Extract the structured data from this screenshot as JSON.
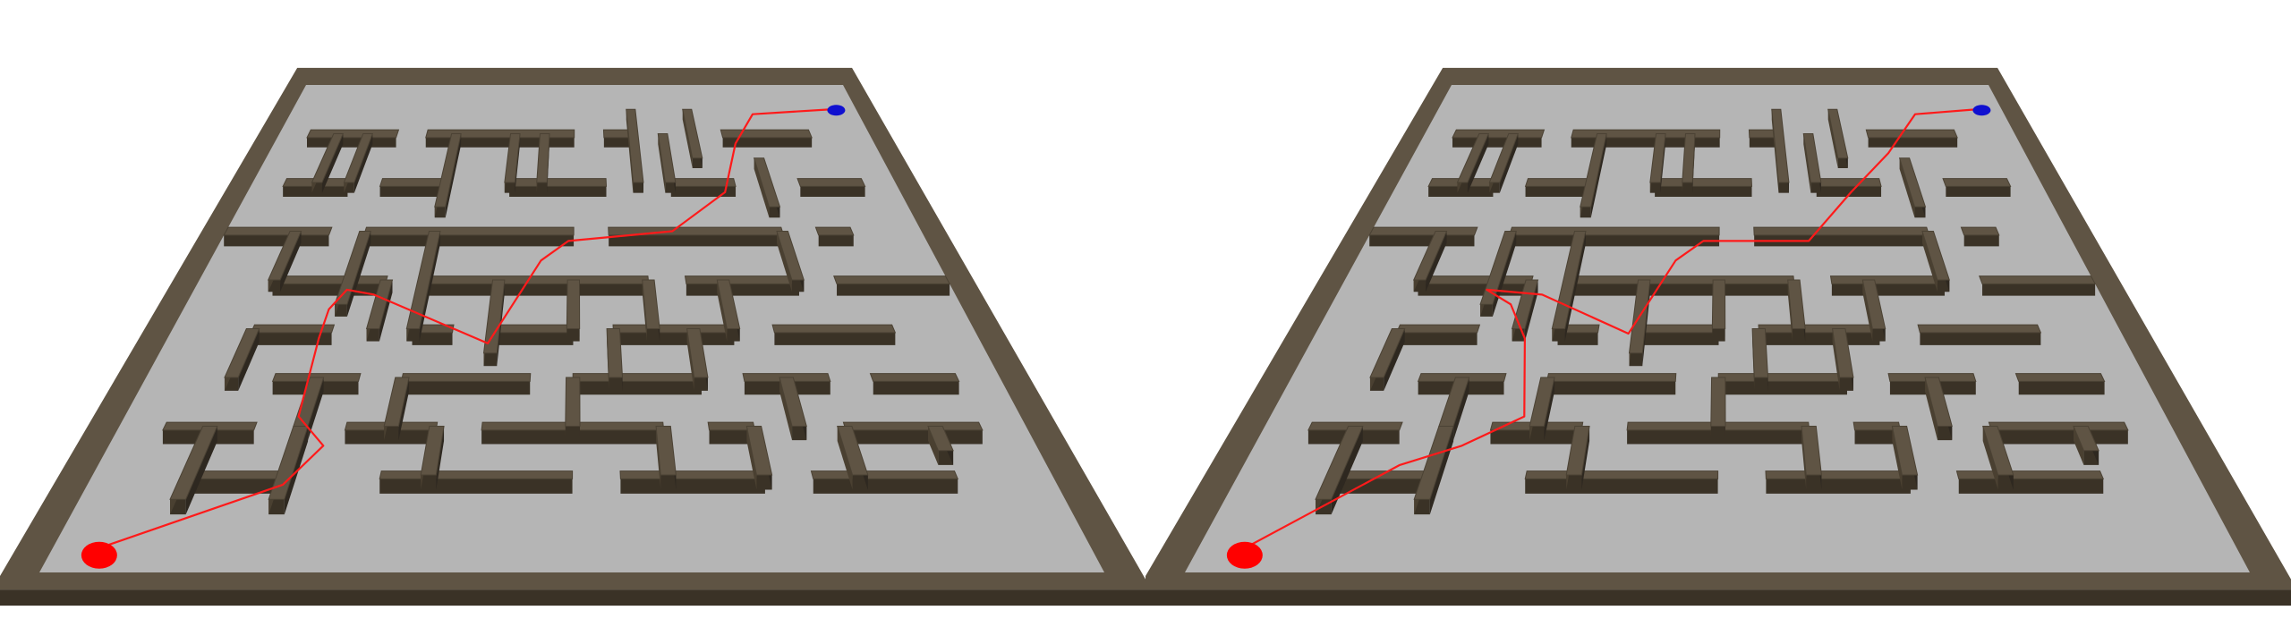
{
  "scene": {
    "type": "side-by-side maze path comparison",
    "panel_count": 2
  },
  "colors": {
    "background": "#ffffff",
    "floor": "#b5b5b5",
    "wall_top": "#5f5444",
    "wall_side": "#3a3226",
    "path": "#ff1a1a",
    "start_marker": "#ff0000",
    "goal_marker": "#1010d0"
  },
  "maze": {
    "grid_cols": 10,
    "grid_rows": 10,
    "walls": [
      [
        0.5,
        1,
        2,
        1
      ],
      [
        2.5,
        1,
        5,
        1
      ],
      [
        5.5,
        1,
        6,
        1
      ],
      [
        7.5,
        1,
        9,
        1
      ],
      [
        0.5,
        2,
        1.5,
        2
      ],
      [
        2,
        2,
        3,
        2
      ],
      [
        4,
        2,
        5.5,
        2
      ],
      [
        6.5,
        2,
        7.5,
        2
      ],
      [
        8.5,
        2,
        9.5,
        2
      ],
      [
        0,
        3,
        1.5,
        3
      ],
      [
        2,
        3,
        5,
        3
      ],
      [
        5.5,
        3,
        8,
        3
      ],
      [
        8.5,
        3,
        9,
        3
      ],
      [
        1,
        4,
        2.5,
        4
      ],
      [
        3,
        4,
        6,
        4
      ],
      [
        6.5,
        4,
        8,
        4
      ],
      [
        8.5,
        4,
        10,
        4
      ],
      [
        1,
        5,
        2,
        5
      ],
      [
        3,
        5,
        3.5,
        5
      ],
      [
        4,
        5,
        5,
        5
      ],
      [
        5.5,
        5,
        7,
        5
      ],
      [
        7.5,
        5,
        9,
        5
      ],
      [
        1.5,
        6,
        2.5,
        6
      ],
      [
        3,
        6,
        4.5,
        6
      ],
      [
        5,
        6,
        6.5,
        6
      ],
      [
        7,
        6,
        8,
        6
      ],
      [
        8.5,
        6,
        9.5,
        6
      ],
      [
        0.5,
        7,
        1.5,
        7
      ],
      [
        2.5,
        7,
        3.5,
        7
      ],
      [
        4,
        7,
        6,
        7
      ],
      [
        6.5,
        7,
        7,
        7
      ],
      [
        8,
        7,
        9.5,
        7
      ],
      [
        1,
        8,
        2,
        8
      ],
      [
        3,
        8,
        5,
        8
      ],
      [
        5.5,
        8,
        7,
        8
      ],
      [
        7.5,
        8,
        9,
        8
      ],
      [
        1,
        1,
        1,
        2
      ],
      [
        1.5,
        1,
        1.5,
        2
      ],
      [
        3,
        1,
        3,
        2.5
      ],
      [
        4,
        1,
        4,
        2
      ],
      [
        4.5,
        1,
        4.5,
        2
      ],
      [
        6,
        0.5,
        6,
        2
      ],
      [
        6.5,
        1,
        6.5,
        2
      ],
      [
        7,
        0.5,
        7,
        1.5
      ],
      [
        8,
        1.5,
        8,
        2.5
      ],
      [
        1,
        3,
        1,
        4
      ],
      [
        2,
        3,
        2,
        4.5
      ],
      [
        2.5,
        4,
        2.5,
        5
      ],
      [
        3,
        3,
        3,
        5
      ],
      [
        4,
        4,
        4,
        5.5
      ],
      [
        5,
        4,
        5,
        5
      ],
      [
        6,
        4,
        6,
        5
      ],
      [
        7,
        4,
        7,
        5
      ],
      [
        8,
        3,
        8,
        4
      ],
      [
        1,
        5,
        1,
        6
      ],
      [
        2,
        6,
        2,
        7
      ],
      [
        3,
        6,
        3,
        7
      ],
      [
        5,
        6,
        5,
        7
      ],
      [
        5.5,
        5,
        5.5,
        6
      ],
      [
        6.5,
        5,
        6.5,
        6
      ],
      [
        7.5,
        6,
        7.5,
        7
      ],
      [
        1,
        7,
        1,
        8.5
      ],
      [
        2,
        7,
        2,
        8.5
      ],
      [
        3.5,
        7,
        3.5,
        8
      ],
      [
        6,
        7,
        6,
        8
      ],
      [
        7,
        7,
        7,
        8
      ],
      [
        8,
        7,
        8,
        8
      ],
      [
        9,
        7,
        9,
        7.5
      ]
    ]
  },
  "panels": [
    {
      "start": [
        0.6,
        9.5
      ],
      "goal": [
        9.3,
        0.5
      ],
      "path": [
        [
          0.6,
          9.5
        ],
        [
          2.7,
          8.2
        ],
        [
          3.1,
          7.4
        ],
        [
          2.6,
          6.8
        ],
        [
          2.5,
          5.2
        ],
        [
          2.5,
          4.6
        ],
        [
          2.7,
          4.2
        ],
        [
          3.2,
          4.3
        ],
        [
          5.3,
          5.3
        ],
        [
          6.1,
          3.6
        ],
        [
          6.6,
          3.2
        ],
        [
          8.6,
          3.0
        ],
        [
          9.8,
          2.2
        ],
        [
          10.3,
          1.2
        ],
        [
          10.9,
          0.6
        ],
        [
          12.8,
          0.5
        ]
      ]
    },
    {
      "start": [
        0.6,
        9.5
      ],
      "goal": [
        9.3,
        0.5
      ],
      "path": [
        [
          0.6,
          9.5
        ],
        [
          2.2,
          7.8
        ],
        [
          3.0,
          7.4
        ],
        [
          3.8,
          6.8
        ],
        [
          3.5,
          5.2
        ],
        [
          3.1,
          4.5
        ],
        [
          2.6,
          4.2
        ],
        [
          3.6,
          4.3
        ],
        [
          5.2,
          5.1
        ],
        [
          5.9,
          3.6
        ],
        [
          6.4,
          3.2
        ],
        [
          8.4,
          3.2
        ],
        [
          9.4,
          2.2
        ],
        [
          10.4,
          1.4
        ],
        [
          11.3,
          0.6
        ],
        [
          12.8,
          0.5
        ]
      ]
    }
  ]
}
